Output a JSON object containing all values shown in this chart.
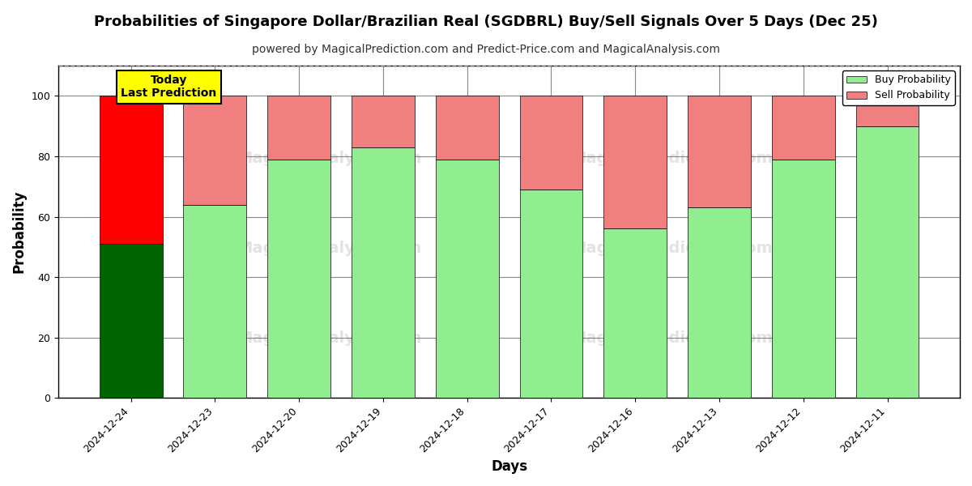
{
  "title": "Probabilities of Singapore Dollar/Brazilian Real (SGDBRL) Buy/Sell Signals Over 5 Days (Dec 25)",
  "subtitle": "powered by MagicalPrediction.com and Predict-Price.com and MagicalAnalysis.com",
  "xlabel": "Days",
  "ylabel": "Probability",
  "categories": [
    "2024-12-24",
    "2024-12-23",
    "2024-12-20",
    "2024-12-19",
    "2024-12-18",
    "2024-12-17",
    "2024-12-16",
    "2024-12-13",
    "2024-12-12",
    "2024-12-11"
  ],
  "buy_values": [
    51,
    64,
    79,
    83,
    79,
    69,
    56,
    63,
    79,
    90
  ],
  "sell_values": [
    49,
    36,
    21,
    17,
    21,
    31,
    44,
    37,
    21,
    10
  ],
  "buy_color_today": "#006400",
  "sell_color_today": "#FF0000",
  "buy_color_normal": "#90EE90",
  "sell_color_normal": "#F08080",
  "today_bar_index": 0,
  "ylim": [
    0,
    110
  ],
  "yticks": [
    0,
    20,
    40,
    60,
    80,
    100
  ],
  "dashed_line_y": 110,
  "legend_buy_label": "Buy Probability",
  "legend_sell_label": "Sell Probability",
  "today_label": "Today\nLast Prediction",
  "background_color": "#ffffff",
  "grid_color": "#888888",
  "title_fontsize": 13,
  "subtitle_fontsize": 10,
  "axis_label_fontsize": 12,
  "tick_fontsize": 9,
  "bar_edge_color": "#000000",
  "bar_width": 0.75
}
